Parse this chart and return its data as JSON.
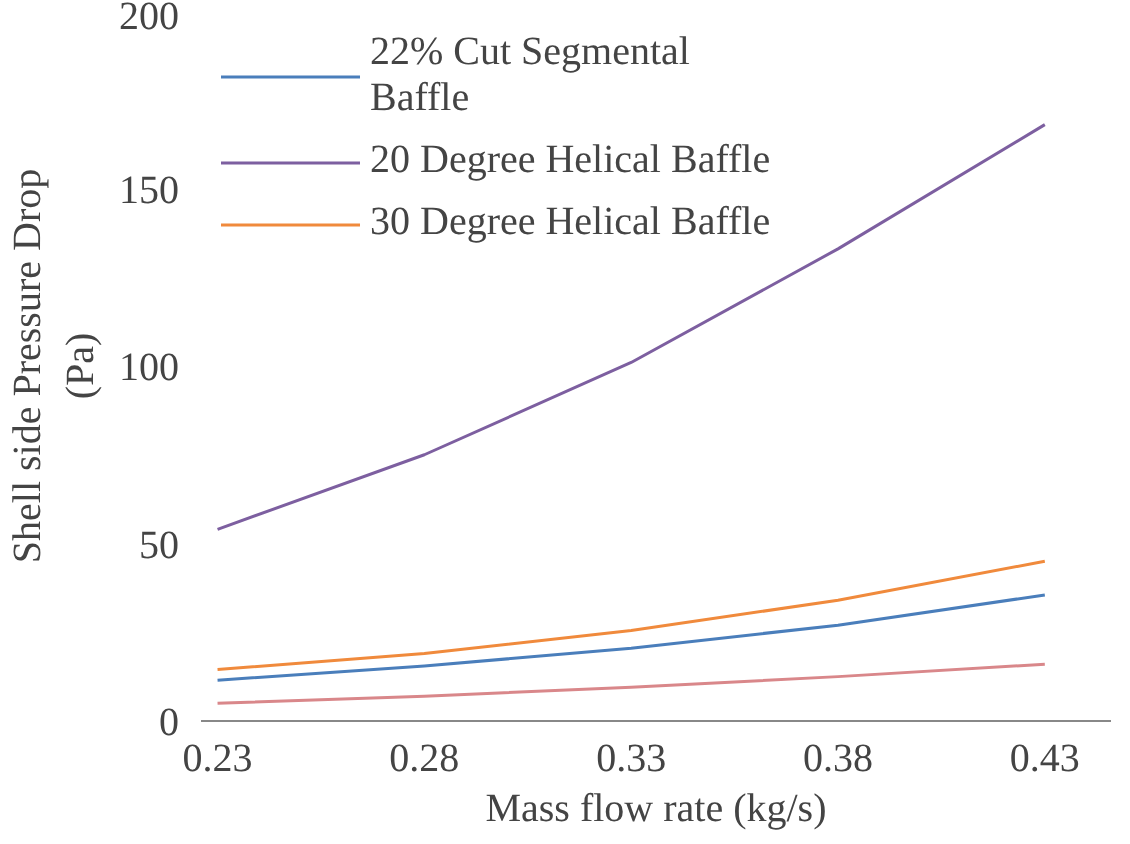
{
  "chart_data": {
    "type": "line",
    "xlabel": "Mass flow rate (kg/s)",
    "ylabel": "Shell side Pressure Drop\n(Pa)",
    "x": [
      0.23,
      0.28,
      0.33,
      0.38,
      0.43
    ],
    "xlim": [
      0.226,
      0.446
    ],
    "xticks": [
      0.23,
      0.28,
      0.33,
      0.38,
      0.43
    ],
    "ylim": [
      0,
      200
    ],
    "yticks": [
      0,
      50,
      100,
      150,
      200
    ],
    "series": [
      {
        "name": "22% Cut Segmental\nBaffle",
        "color": "#4a7ebb",
        "values": [
          11.5,
          15.5,
          20.5,
          27,
          35.5
        ]
      },
      {
        "name": "20 Degree Helical Baffle",
        "color": "#7d5fa0",
        "values": [
          54,
          75,
          101,
          133,
          168
        ]
      },
      {
        "name": "30 Degree Helical Baffle",
        "color": "#f08a3c",
        "values": [
          14.5,
          19,
          25.5,
          34,
          45
        ]
      },
      {
        "color": "#d9878a",
        "values": [
          5,
          7,
          9.5,
          12.5,
          16
        ]
      }
    ],
    "grid": false,
    "legend": "top left",
    "line_style": "solid",
    "marker": "none"
  }
}
